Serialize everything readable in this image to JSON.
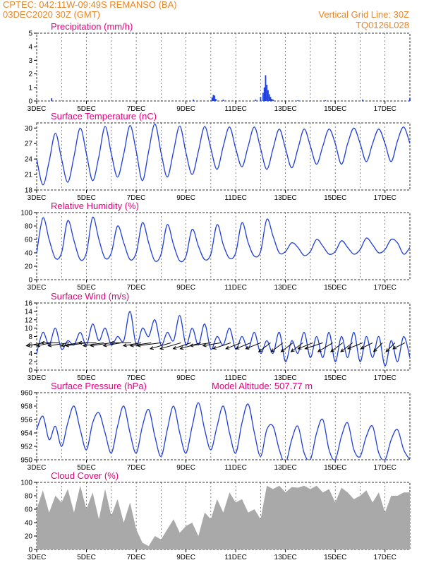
{
  "header": {
    "line1_left": "CPTEC:   042:11W-09:49S   REMANSO (BA)",
    "line2_left": "03DEC2020 30Z (GMT)",
    "line1_right": "Vertical Grid Line: 30Z",
    "line2_right": "TQ0126L028"
  },
  "colors": {
    "header": "#e8862a",
    "title": "#e6007e",
    "line": "#1f3fd8",
    "cloud": "#a9a9a9",
    "grid": "#333333"
  },
  "chart_data": [
    {
      "type": "bar",
      "title": "Precipitation (mm/h)",
      "ylim": [
        0,
        5
      ],
      "yticks": [
        0,
        1,
        2,
        3,
        4,
        5
      ],
      "xticks": [
        "3DEC",
        "5DEC",
        "7DEC",
        "9DEC",
        "11DEC",
        "13DEC",
        "15DEC",
        "17DEC"
      ],
      "x_unit": "day_of_month",
      "x": [
        3.6,
        9.3,
        10.05,
        10.1,
        10.15,
        10.2,
        10.5,
        11.8,
        12.0,
        12.1,
        12.15,
        12.2,
        12.25,
        12.3,
        12.35,
        12.4,
        12.45,
        12.5,
        13.5,
        14.6,
        16.1,
        18.0
      ],
      "values": [
        0.2,
        0.1,
        0.25,
        0.45,
        0.4,
        0.15,
        0.1,
        0.1,
        0.3,
        0.6,
        1.0,
        1.9,
        1.2,
        0.8,
        0.5,
        0.3,
        0.15,
        0.1,
        0.05,
        0.05,
        0.1,
        0.2
      ]
    },
    {
      "type": "line",
      "title": "Surface Temperature (nC)",
      "ylim": [
        18,
        31
      ],
      "yticks": [
        18,
        21,
        24,
        27,
        30
      ],
      "xticks": [
        "3DEC",
        "5DEC",
        "7DEC",
        "9DEC",
        "11DEC",
        "13DEC",
        "15DEC",
        "17DEC"
      ],
      "x_unit": "day_of_month",
      "x": [
        3.0,
        3.25,
        3.5,
        3.75,
        4.0,
        4.25,
        4.5,
        4.75,
        5.0,
        5.25,
        5.5,
        5.75,
        6.0,
        6.25,
        6.5,
        6.75,
        7.0,
        7.25,
        7.5,
        7.75,
        8.0,
        8.25,
        8.5,
        8.75,
        9.0,
        9.25,
        9.5,
        9.75,
        10.0,
        10.25,
        10.5,
        10.75,
        11.0,
        11.25,
        11.5,
        11.75,
        12.0,
        12.25,
        12.5,
        12.75,
        13.0,
        13.25,
        13.5,
        13.75,
        14.0,
        14.25,
        14.5,
        14.75,
        15.0,
        15.25,
        15.5,
        15.75,
        16.0,
        16.25,
        16.5,
        16.75,
        17.0,
        17.25,
        17.5,
        17.75,
        18.0
      ],
      "values": [
        24.0,
        19.0,
        23.5,
        29.0,
        24.0,
        19.5,
        24.5,
        30.0,
        25.0,
        19.8,
        24.5,
        30.3,
        25.0,
        20.5,
        25.0,
        30.5,
        25.5,
        19.8,
        25.5,
        30.8,
        25.2,
        20.5,
        25.5,
        30.4,
        25.2,
        21.0,
        25.5,
        30.3,
        26.0,
        22.0,
        26.5,
        30.2,
        26.0,
        22.5,
        26.5,
        30.2,
        26.0,
        22.0,
        26.0,
        29.8,
        26.0,
        22.3,
        26.0,
        29.8,
        26.5,
        23.0,
        26.5,
        29.8,
        27.0,
        23.0,
        27.0,
        30.0,
        27.0,
        23.5,
        27.0,
        29.8,
        27.0,
        23.5,
        27.5,
        30.2,
        27.0
      ]
    },
    {
      "type": "line",
      "title": "Relative Humidity (%)",
      "ylim": [
        0,
        100
      ],
      "yticks": [
        0,
        20,
        40,
        60,
        80,
        100
      ],
      "xticks": [
        "3DEC",
        "5DEC",
        "7DEC",
        "9DEC",
        "11DEC",
        "13DEC",
        "15DEC",
        "17DEC"
      ],
      "x_unit": "day_of_month",
      "x": [
        3.0,
        3.25,
        3.5,
        3.75,
        4.0,
        4.25,
        4.5,
        4.75,
        5.0,
        5.25,
        5.5,
        5.75,
        6.0,
        6.25,
        6.5,
        6.75,
        7.0,
        7.25,
        7.5,
        7.75,
        8.0,
        8.25,
        8.5,
        8.75,
        9.0,
        9.25,
        9.5,
        9.75,
        10.0,
        10.25,
        10.5,
        10.75,
        11.0,
        11.25,
        11.5,
        11.75,
        12.0,
        12.25,
        12.5,
        12.75,
        13.0,
        13.25,
        13.5,
        13.75,
        14.0,
        14.25,
        14.5,
        14.75,
        15.0,
        15.25,
        15.5,
        15.75,
        16.0,
        16.25,
        16.5,
        16.75,
        17.0,
        17.25,
        17.5,
        17.75,
        18.0
      ],
      "values": [
        40,
        92,
        60,
        32,
        40,
        88,
        58,
        30,
        40,
        93,
        60,
        32,
        40,
        80,
        55,
        30,
        40,
        85,
        55,
        28,
        38,
        82,
        52,
        28,
        35,
        75,
        50,
        30,
        38,
        82,
        52,
        32,
        40,
        85,
        55,
        35,
        42,
        90,
        65,
        40,
        42,
        55,
        48,
        36,
        42,
        60,
        50,
        38,
        42,
        58,
        48,
        38,
        45,
        62,
        52,
        40,
        45,
        60,
        55,
        38,
        48
      ]
    },
    {
      "type": "line",
      "title": "Surface Wind (m/s)",
      "ylim": [
        0,
        16
      ],
      "yticks": [
        0,
        2,
        4,
        6,
        8,
        10,
        12,
        14,
        16
      ],
      "xticks": [
        "3DEC",
        "5DEC",
        "7DEC",
        "9DEC",
        "11DEC",
        "13DEC",
        "15DEC",
        "17DEC"
      ],
      "x_unit": "day_of_month",
      "x": [
        3.0,
        3.25,
        3.5,
        3.75,
        4.0,
        4.25,
        4.5,
        4.75,
        5.0,
        5.25,
        5.5,
        5.75,
        6.0,
        6.25,
        6.5,
        6.75,
        7.0,
        7.25,
        7.5,
        7.75,
        8.0,
        8.25,
        8.5,
        8.75,
        9.0,
        9.25,
        9.5,
        9.75,
        10.0,
        10.25,
        10.5,
        10.75,
        11.0,
        11.25,
        11.5,
        11.75,
        12.0,
        12.25,
        12.5,
        12.75,
        13.0,
        13.25,
        13.5,
        13.75,
        14.0,
        14.25,
        14.5,
        14.75,
        15.0,
        15.25,
        15.5,
        15.75,
        16.0,
        16.25,
        16.5,
        16.75,
        17.0,
        17.25,
        17.5,
        17.75,
        18.0
      ],
      "values": [
        4,
        9,
        6,
        10,
        5,
        7,
        6,
        9,
        6,
        11,
        7,
        10,
        6,
        8,
        7,
        14,
        6,
        10,
        8,
        12,
        6,
        9,
        7,
        13,
        6,
        10,
        6,
        11,
        5,
        8,
        6,
        10,
        5,
        8,
        5,
        9,
        4,
        7,
        4,
        9,
        2,
        7,
        4,
        9,
        3,
        8,
        3,
        9,
        2,
        8,
        3,
        9,
        2,
        8,
        3,
        8,
        1,
        7,
        2,
        8,
        3
      ],
      "vector_x": [
        3.3,
        3.6,
        3.9,
        4.3,
        4.7,
        5.0,
        5.4,
        5.7,
        6.0,
        6.4,
        6.8,
        7.2,
        7.6,
        8.0,
        8.4,
        8.8,
        9.2,
        9.6,
        10.0,
        10.4,
        10.8,
        11.2,
        11.6,
        12.0,
        12.4,
        12.9,
        13.3,
        13.7,
        14.1,
        14.5,
        14.9,
        15.3,
        15.7,
        16.1,
        16.5,
        16.9,
        17.4,
        17.8
      ],
      "vector_u": [
        -6,
        -5,
        -6,
        -7,
        -6,
        -7,
        -6,
        -7,
        -7,
        -6,
        -7,
        -6,
        -7,
        -8,
        -7,
        -7,
        -6,
        -7,
        -7,
        -6,
        -6,
        -5,
        -5,
        -5,
        -4,
        -4,
        -4,
        -4,
        -5,
        -6,
        -5,
        -4,
        -4,
        -5,
        -4,
        -3,
        -3,
        -4
      ],
      "vector_v": [
        -1,
        -1,
        0,
        -1,
        -1,
        -1,
        0,
        -1,
        -1,
        -1,
        0,
        -1,
        -1,
        -1,
        -2,
        -2,
        -2,
        -2,
        -1,
        -1,
        -2,
        -2,
        -2,
        -2,
        -3,
        -3,
        -3,
        -3,
        -2,
        -2,
        -3,
        -3,
        -3,
        -2,
        -2,
        -3,
        -3,
        -2
      ]
    },
    {
      "type": "line",
      "title": "Surface Pressure (hPa)",
      "annotation": "Model Altitude: 507.77  m",
      "ylim": [
        950,
        960
      ],
      "yticks": [
        950,
        952,
        954,
        956,
        958,
        960
      ],
      "xticks": [
        "3DEC",
        "5DEC",
        "7DEC",
        "9DEC",
        "11DEC",
        "13DEC",
        "15DEC",
        "17DEC"
      ],
      "x_unit": "day_of_month",
      "x": [
        3.0,
        3.25,
        3.5,
        3.75,
        4.0,
        4.25,
        4.5,
        4.75,
        5.0,
        5.25,
        5.5,
        5.75,
        6.0,
        6.25,
        6.5,
        6.75,
        7.0,
        7.25,
        7.5,
        7.75,
        8.0,
        8.25,
        8.5,
        8.75,
        9.0,
        9.25,
        9.5,
        9.75,
        10.0,
        10.25,
        10.5,
        10.75,
        11.0,
        11.25,
        11.5,
        11.75,
        12.0,
        12.25,
        12.5,
        12.75,
        13.0,
        13.25,
        13.5,
        13.75,
        14.0,
        14.25,
        14.5,
        14.75,
        15.0,
        15.25,
        15.5,
        15.75,
        16.0,
        16.25,
        16.5,
        16.75,
        17.0,
        17.25,
        17.5,
        17.75,
        18.0
      ],
      "values": [
        954.5,
        956.5,
        953.0,
        955.0,
        952.0,
        955.5,
        958.0,
        954.5,
        951.5,
        955.5,
        957.0,
        954.0,
        951.0,
        955.0,
        958.0,
        954.0,
        951.0,
        955.0,
        957.5,
        953.5,
        950.5,
        954.5,
        958.0,
        954.0,
        951.0,
        955.0,
        958.5,
        954.5,
        951.5,
        955.0,
        958.0,
        954.0,
        951.0,
        955.5,
        958.3,
        954.0,
        950.5,
        954.5,
        955.0,
        951.5,
        949.5,
        953.0,
        955.0,
        951.0,
        950.0,
        954.0,
        956.0,
        951.5,
        950.0,
        953.5,
        955.5,
        951.5,
        950.5,
        953.5,
        955.0,
        951.0,
        950.0,
        953.0,
        954.5,
        951.5,
        950.0
      ]
    },
    {
      "type": "area",
      "title": "Cloud Cover (%)",
      "ylim": [
        0,
        100
      ],
      "yticks": [
        0,
        20,
        40,
        60,
        80,
        100
      ],
      "xticks": [
        "3DEC",
        "5DEC",
        "7DEC",
        "9DEC",
        "11DEC",
        "13DEC",
        "15DEC",
        "17DEC"
      ],
      "x_unit": "day_of_month",
      "x": [
        3.0,
        3.25,
        3.5,
        3.75,
        4.0,
        4.25,
        4.5,
        4.75,
        5.0,
        5.25,
        5.5,
        5.75,
        6.0,
        6.25,
        6.5,
        6.75,
        7.0,
        7.25,
        7.5,
        7.75,
        8.0,
        8.25,
        8.5,
        8.75,
        9.0,
        9.25,
        9.5,
        9.75,
        10.0,
        10.25,
        10.5,
        10.75,
        11.0,
        11.25,
        11.5,
        11.75,
        12.0,
        12.25,
        12.5,
        12.75,
        13.0,
        13.25,
        13.5,
        13.75,
        14.0,
        14.25,
        14.5,
        14.75,
        15.0,
        15.25,
        15.5,
        15.75,
        16.0,
        16.25,
        16.5,
        16.75,
        17.0,
        17.25,
        17.5,
        17.75,
        18.0
      ],
      "values": [
        60,
        88,
        55,
        80,
        70,
        90,
        55,
        95,
        60,
        85,
        45,
        90,
        50,
        75,
        40,
        70,
        30,
        10,
        5,
        20,
        15,
        30,
        45,
        25,
        35,
        40,
        20,
        55,
        45,
        75,
        55,
        85,
        70,
        75,
        55,
        60,
        45,
        95,
        90,
        95,
        85,
        93,
        92,
        95,
        90,
        95,
        85,
        90,
        70,
        92,
        85,
        75,
        80,
        88,
        70,
        85,
        55,
        80,
        80,
        85,
        85
      ]
    }
  ]
}
